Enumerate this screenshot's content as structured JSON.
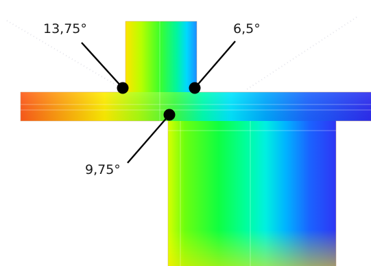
{
  "diagram": {
    "type": "thermal-bridge-isotherm",
    "palette": [
      "#ff4a1a",
      "#ffb300",
      "#fff200",
      "#6cff00",
      "#00ff55",
      "#00ffd5",
      "#00b4ff",
      "#1a4dff",
      "#2b2bf2"
    ],
    "callouts": [
      {
        "id": "upper-left",
        "label": "13,75°"
      },
      {
        "id": "upper-right",
        "label": "6,5°"
      },
      {
        "id": "lower",
        "label": "9,75°"
      }
    ]
  }
}
